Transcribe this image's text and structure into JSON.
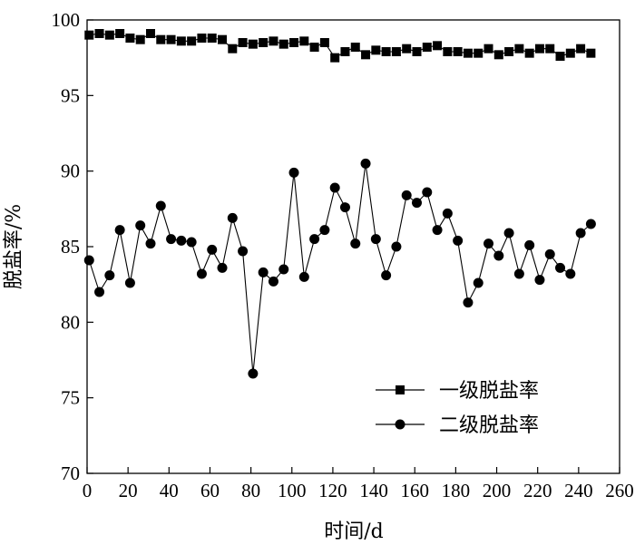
{
  "chart_data": {
    "type": "line",
    "xlabel": "时间/d",
    "ylabel": "脱盐率/%",
    "xlim": [
      0,
      260
    ],
    "ylim": [
      70,
      100
    ],
    "xticks": [
      0,
      20,
      40,
      60,
      80,
      100,
      120,
      140,
      160,
      180,
      200,
      220,
      240,
      260
    ],
    "yticks": [
      70,
      75,
      80,
      85,
      90,
      95,
      100
    ],
    "grid": false,
    "legend_position": "bottom-right",
    "series": [
      {
        "name": "一级脱盐率",
        "marker": "square",
        "x": [
          1,
          6,
          11,
          16,
          21,
          26,
          31,
          36,
          41,
          46,
          51,
          56,
          61,
          66,
          71,
          76,
          81,
          86,
          91,
          96,
          101,
          106,
          111,
          116,
          121,
          126,
          131,
          136,
          141,
          146,
          151,
          156,
          161,
          166,
          171,
          176,
          181,
          186,
          191,
          196,
          201,
          206,
          211,
          216,
          221,
          226,
          231,
          236,
          241,
          246
        ],
        "values": [
          99.0,
          99.1,
          99.0,
          99.1,
          98.8,
          98.7,
          99.1,
          98.7,
          98.7,
          98.6,
          98.6,
          98.8,
          98.8,
          98.7,
          98.1,
          98.5,
          98.4,
          98.5,
          98.6,
          98.4,
          98.5,
          98.6,
          98.2,
          98.5,
          97.5,
          97.9,
          98.2,
          97.7,
          98.0,
          97.9,
          97.9,
          98.1,
          97.9,
          98.2,
          98.3,
          97.9,
          97.9,
          97.8,
          97.8,
          98.1,
          97.7,
          97.9,
          98.1,
          97.8,
          98.1,
          98.1,
          97.6,
          97.8,
          98.1,
          97.8
        ]
      },
      {
        "name": "二级脱盐率",
        "marker": "circle",
        "x": [
          1,
          6,
          11,
          16,
          21,
          26,
          31,
          36,
          41,
          46,
          51,
          56,
          61,
          66,
          71,
          76,
          81,
          86,
          91,
          96,
          101,
          106,
          111,
          116,
          121,
          126,
          131,
          136,
          141,
          146,
          151,
          156,
          161,
          166,
          171,
          176,
          181,
          186,
          191,
          196,
          201,
          206,
          211,
          216,
          221,
          226,
          231,
          236,
          241,
          246
        ],
        "values": [
          84.1,
          82.0,
          83.1,
          86.1,
          82.6,
          86.4,
          85.2,
          87.7,
          85.5,
          85.4,
          85.3,
          83.2,
          84.8,
          83.6,
          86.9,
          84.7,
          76.6,
          83.3,
          82.7,
          83.5,
          89.9,
          83.0,
          85.5,
          86.1,
          88.9,
          87.6,
          85.2,
          90.5,
          85.5,
          83.1,
          85.0,
          88.4,
          87.9,
          88.6,
          86.1,
          87.2,
          85.4,
          81.3,
          82.6,
          85.2,
          84.4,
          85.9,
          83.2,
          85.1,
          82.8,
          84.5,
          83.6,
          83.2,
          85.9,
          86.5
        ]
      }
    ]
  }
}
